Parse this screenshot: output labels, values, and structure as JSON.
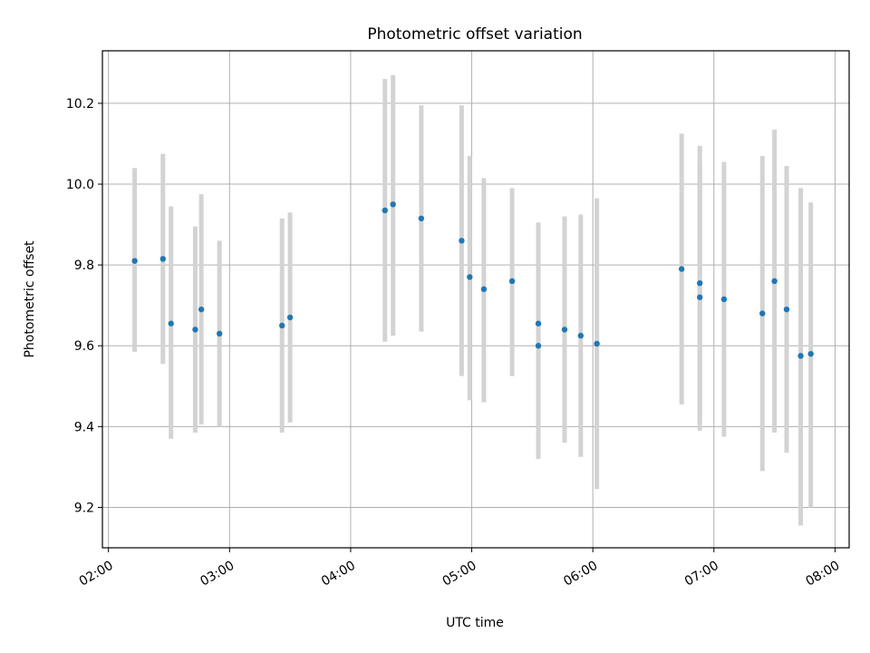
{
  "chart_data": {
    "type": "scatter",
    "title": "Photometric offset variation",
    "xlabel": "UTC time",
    "ylabel": "Photometric offset",
    "x_ticks": [
      "02:00",
      "03:00",
      "04:00",
      "05:00",
      "06:00",
      "07:00",
      "08:00"
    ],
    "y_ticks": [
      "9.2",
      "9.4",
      "9.6",
      "9.8",
      "10.0",
      "10.2"
    ],
    "xlim": [
      "01:57",
      "08:07"
    ],
    "ylim": [
      9.1,
      10.33
    ],
    "grid": true,
    "legend": "none",
    "colors": {
      "point": "#1f77b4",
      "errorbar": "#d3d3d3",
      "grid": "#b0b0b0"
    },
    "points": [
      {
        "t": "02:13",
        "y": 9.81,
        "ylo": 9.585,
        "yhi": 10.04
      },
      {
        "t": "02:27",
        "y": 9.815,
        "ylo": 9.555,
        "yhi": 10.075
      },
      {
        "t": "02:31",
        "y": 9.655,
        "ylo": 9.37,
        "yhi": 9.945
      },
      {
        "t": "02:43",
        "y": 9.64,
        "ylo": 9.385,
        "yhi": 9.895
      },
      {
        "t": "02:46",
        "y": 9.69,
        "ylo": 9.405,
        "yhi": 9.975
      },
      {
        "t": "02:55",
        "y": 9.63,
        "ylo": 9.4,
        "yhi": 9.86
      },
      {
        "t": "03:26",
        "y": 9.65,
        "ylo": 9.385,
        "yhi": 9.915
      },
      {
        "t": "03:30",
        "y": 9.67,
        "ylo": 9.41,
        "yhi": 9.93
      },
      {
        "t": "04:17",
        "y": 9.935,
        "ylo": 9.61,
        "yhi": 10.26
      },
      {
        "t": "04:21",
        "y": 9.95,
        "ylo": 9.625,
        "yhi": 10.27
      },
      {
        "t": "04:35",
        "y": 9.915,
        "ylo": 9.635,
        "yhi": 10.195
      },
      {
        "t": "04:55",
        "y": 9.86,
        "ylo": 9.525,
        "yhi": 10.195
      },
      {
        "t": "04:59",
        "y": 9.77,
        "ylo": 9.465,
        "yhi": 10.07
      },
      {
        "t": "05:06",
        "y": 9.74,
        "ylo": 9.46,
        "yhi": 10.015
      },
      {
        "t": "05:20",
        "y": 9.76,
        "ylo": 9.525,
        "yhi": 9.99
      },
      {
        "t": "05:33",
        "y": 9.655,
        "ylo": 9.41,
        "yhi": 9.905
      },
      {
        "t": "05:33",
        "y": 9.6,
        "ylo": 9.32,
        "yhi": 9.88
      },
      {
        "t": "05:46",
        "y": 9.64,
        "ylo": 9.36,
        "yhi": 9.92
      },
      {
        "t": "05:54",
        "y": 9.625,
        "ylo": 9.325,
        "yhi": 9.925
      },
      {
        "t": "06:02",
        "y": 9.605,
        "ylo": 9.245,
        "yhi": 9.965
      },
      {
        "t": "06:44",
        "y": 9.79,
        "ylo": 9.455,
        "yhi": 10.125
      },
      {
        "t": "06:53",
        "y": 9.755,
        "ylo": 9.41,
        "yhi": 10.095
      },
      {
        "t": "06:53",
        "y": 9.72,
        "ylo": 9.39,
        "yhi": 10.05
      },
      {
        "t": "07:05",
        "y": 9.715,
        "ylo": 9.375,
        "yhi": 10.055
      },
      {
        "t": "07:24",
        "y": 9.68,
        "ylo": 9.29,
        "yhi": 10.07
      },
      {
        "t": "07:30",
        "y": 9.76,
        "ylo": 9.385,
        "yhi": 10.135
      },
      {
        "t": "07:36",
        "y": 9.69,
        "ylo": 9.335,
        "yhi": 10.045
      },
      {
        "t": "07:43",
        "y": 9.575,
        "ylo": 9.155,
        "yhi": 9.99
      },
      {
        "t": "07:48",
        "y": 9.58,
        "ylo": 9.2,
        "yhi": 9.955
      }
    ]
  }
}
